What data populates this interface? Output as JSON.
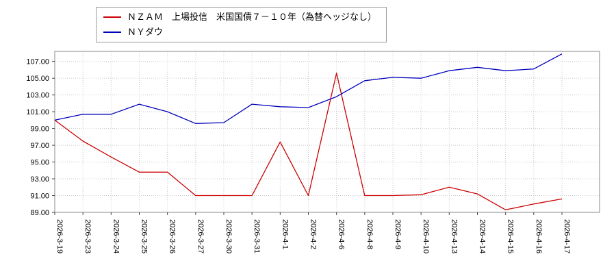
{
  "legend": {
    "items": [
      {
        "label": "ＮＺＡＭ　上場投信　米国国債７－１０年（為替ヘッジなし）",
        "color": "#cc0000"
      },
      {
        "label": "ＮＹダウ",
        "color": "#0000bb"
      }
    ]
  },
  "chart_data": {
    "type": "line",
    "title": "",
    "xlabel": "",
    "ylabel": "",
    "categories": [
      "2026-3-19",
      "2026-3-23",
      "2026-3-24",
      "2026-3-25",
      "2026-3-26",
      "2026-3-27",
      "2026-3-30",
      "2026-3-31",
      "2026-4-1",
      "2026-4-2",
      "2026-4-6",
      "2026-4-8",
      "2026-4-9",
      "2026-4-10",
      "2026-4-13",
      "2026-4-14",
      "2026-4-15",
      "2026-4-16",
      "2026-4-17"
    ],
    "series": [
      {
        "name": "ＮＺＡＭ　上場投信　米国国債７－１０年（為替ヘッジなし）",
        "color": "#cc0000",
        "values": [
          100.0,
          97.5,
          95.6,
          93.8,
          93.8,
          91.0,
          91.0,
          91.0,
          97.4,
          91.0,
          105.6,
          91.0,
          91.0,
          91.1,
          92.0,
          91.2,
          89.3,
          90.0,
          90.6
        ]
      },
      {
        "name": "ＮＹダウ",
        "color": "#0000bb",
        "values": [
          100.0,
          100.7,
          100.7,
          101.9,
          101.0,
          99.6,
          99.7,
          101.9,
          101.6,
          101.5,
          102.8,
          104.7,
          105.1,
          105.0,
          105.9,
          106.3,
          105.9,
          106.1,
          107.9
        ]
      }
    ],
    "ylim": [
      89.0,
      108.2
    ],
    "yticks": [
      89.0,
      91.0,
      93.0,
      95.0,
      97.0,
      99.0,
      101.0,
      103.0,
      105.0,
      107.0
    ],
    "grid": true,
    "legend_position": "top-left"
  }
}
